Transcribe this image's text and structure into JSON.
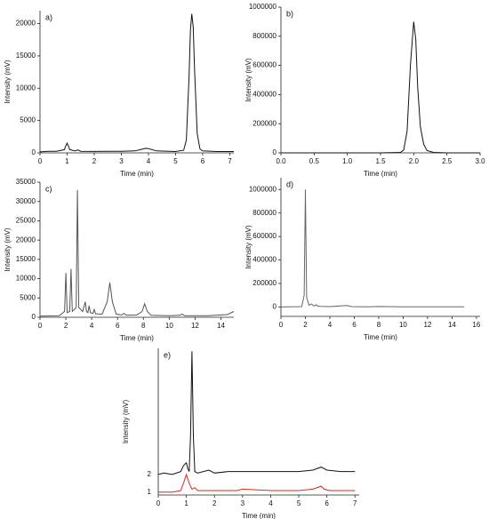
{
  "chart_data": [
    {
      "type": "line",
      "title": "a)",
      "x_label": "Time (min)",
      "y_label": "Intensity (mV)",
      "color": "#111111",
      "x": [
        0,
        0.3,
        0.6,
        0.9,
        0.95,
        1.0,
        1.05,
        1.1,
        1.3,
        1.4,
        1.5,
        2,
        2.5,
        3,
        3.5,
        3.8,
        3.9,
        4.0,
        4.3,
        5,
        5.3,
        5.4,
        5.5,
        5.55,
        5.6,
        5.65,
        5.7,
        5.8,
        5.9,
        6.0,
        6.5,
        7.0,
        7.15
      ],
      "values": [
        150,
        250,
        250,
        500,
        1100,
        1500,
        1000,
        500,
        300,
        450,
        250,
        220,
        230,
        230,
        300,
        600,
        700,
        650,
        300,
        200,
        400,
        2000,
        12000,
        19000,
        21500,
        19500,
        13000,
        3000,
        600,
        300,
        200,
        200,
        200
      ],
      "xlim": [
        0,
        7.15
      ],
      "ylim": [
        0,
        22000
      ],
      "xticks": [
        0,
        1,
        2,
        3,
        4,
        5,
        6,
        7
      ],
      "yticks": [
        0,
        5000,
        10000,
        15000,
        20000
      ]
    },
    {
      "type": "line",
      "title": "b)",
      "x_label": "Time (min)",
      "y_label": "Intensity (mV)",
      "color": "#111111",
      "x": [
        0,
        1.5,
        1.8,
        1.85,
        1.9,
        1.95,
        2.0,
        2.03,
        2.06,
        2.1,
        2.15,
        2.2,
        2.3,
        2.5,
        3.0
      ],
      "values": [
        0,
        0,
        3000,
        20000,
        150000,
        600000,
        900000,
        780000,
        450000,
        180000,
        60000,
        15000,
        3000,
        0,
        0
      ],
      "xlim": [
        0,
        3
      ],
      "ylim": [
        0,
        1000000
      ],
      "xticks": [
        {
          "value": 0,
          "label": "0.0"
        },
        {
          "value": 0.5,
          "label": "0.5"
        },
        {
          "value": 1,
          "label": "1.0"
        },
        {
          "value": 1.5,
          "label": "1.5"
        },
        {
          "value": 2,
          "label": "2.0"
        },
        {
          "value": 2.5,
          "label": "2.5"
        },
        {
          "value": 3,
          "label": "3.0"
        }
      ],
      "yticks": [
        0,
        200000,
        400000,
        600000,
        800000,
        1000000
      ]
    },
    {
      "type": "line",
      "title": "c)",
      "x_label": "Time (min)",
      "y_label": "Intensity (mV)",
      "color": "#555555",
      "x": [
        0,
        1.5,
        1.9,
        2.0,
        2.1,
        2.3,
        2.4,
        2.5,
        2.8,
        2.9,
        3.0,
        3.3,
        3.5,
        3.6,
        3.7,
        3.8,
        3.9,
        4.1,
        4.2,
        4.3,
        4.8,
        5.2,
        5.4,
        5.6,
        5.9,
        6.3,
        6.5,
        6.7,
        7.5,
        7.9,
        8.1,
        8.3,
        8.6,
        10,
        10.8,
        11,
        11.2,
        13,
        14.5,
        15
      ],
      "values": [
        300,
        400,
        1500,
        11500,
        1200,
        1500,
        12500,
        1500,
        2500,
        33000,
        2500,
        1500,
        4000,
        1500,
        1200,
        3000,
        1200,
        1000,
        2000,
        900,
        800,
        4000,
        9000,
        4000,
        800,
        600,
        1000,
        500,
        600,
        1500,
        3500,
        1500,
        500,
        400,
        500,
        800,
        400,
        400,
        700,
        1500
      ],
      "xlim": [
        0,
        15
      ],
      "ylim": [
        0,
        35000
      ],
      "xticks": [
        0,
        2,
        4,
        6,
        8,
        10,
        12,
        14
      ],
      "yticks": [
        0,
        5000,
        10000,
        15000,
        20000,
        25000,
        30000,
        35000
      ]
    },
    {
      "type": "line",
      "title": "d)",
      "x_label": "Time (min)",
      "y_label": "Intensity (mV)",
      "color": "#666666",
      "x": [
        0,
        1.7,
        1.9,
        2.0,
        2.1,
        2.3,
        2.5,
        2.7,
        2.9,
        3.0,
        3.2,
        4,
        5.4,
        5.8,
        7,
        8,
        10,
        12,
        15
      ],
      "values": [
        0,
        3000,
        100000,
        1000000,
        80000,
        15000,
        25000,
        8000,
        20000,
        8000,
        5000,
        3000,
        12000,
        3000,
        2000,
        4000,
        1000,
        1000,
        2000
      ],
      "xlim": [
        0,
        16.3
      ],
      "ylim": [
        -80000,
        1100000
      ],
      "xticks": [
        0,
        2,
        4,
        6,
        8,
        10,
        12,
        14,
        16
      ],
      "yticks": [
        0,
        200000,
        400000,
        600000,
        800000,
        1000000
      ]
    },
    {
      "type": "line",
      "title": "e)",
      "x_label": "Time (min)",
      "y_label": "Intensity (mV)",
      "xlim": [
        0,
        7.15
      ],
      "ylim": [
        0,
        100
      ],
      "xticks": [
        0,
        1,
        2,
        3,
        4,
        5,
        6,
        7
      ],
      "series": [
        {
          "name": "2",
          "color": "#111111",
          "x": [
            0,
            0.2,
            0.5,
            0.8,
            0.9,
            1.0,
            1.05,
            1.1,
            1.15,
            1.2,
            1.25,
            1.3,
            1.4,
            1.6,
            1.8,
            2.0,
            2.5,
            3,
            4,
            5,
            5.5,
            5.8,
            6.0,
            6.5,
            7
          ],
          "values": [
            14,
            15,
            14,
            16,
            20,
            22,
            18,
            16,
            40,
            98,
            40,
            16,
            15,
            16,
            17,
            15,
            16,
            16,
            16,
            16,
            17,
            19,
            17,
            16,
            16
          ]
        },
        {
          "name": "1",
          "color": "#d62a1e",
          "x": [
            0,
            0.5,
            0.8,
            0.9,
            1.0,
            1.1,
            1.2,
            1.3,
            1.4,
            1.6,
            2,
            2.8,
            3,
            4,
            5,
            5.5,
            5.8,
            5.9,
            6.1,
            7
          ],
          "values": [
            2,
            2,
            3,
            8,
            14,
            8,
            4,
            5,
            3,
            3,
            3,
            3,
            4,
            3,
            3,
            4,
            6,
            4,
            3,
            3
          ]
        }
      ]
    }
  ]
}
